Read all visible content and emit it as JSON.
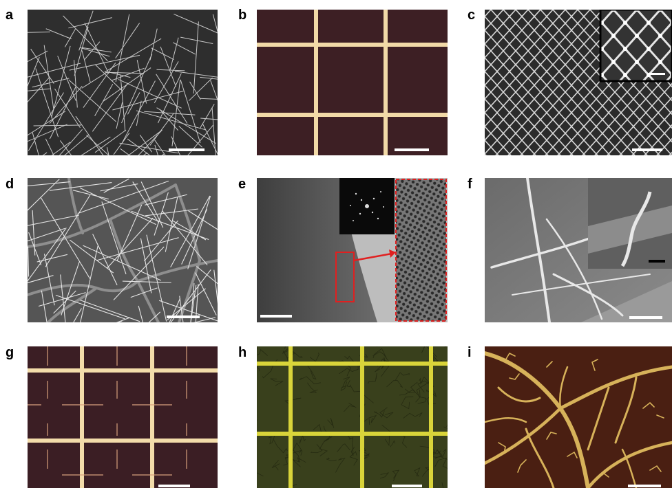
{
  "figure": {
    "panels": [
      {
        "id": "a",
        "label": "a",
        "imaging": "SEM",
        "subject": "random nanowire network",
        "scale_bar_color": "#ffffff"
      },
      {
        "id": "b",
        "label": "b",
        "imaging": "optical",
        "subject": "square metal grid",
        "scale_bar_color": "#ffffff"
      },
      {
        "id": "c",
        "label": "c",
        "imaging": "SEM",
        "subject": "diamond mesh with magnified inset",
        "scale_bar_color": "#ffffff"
      },
      {
        "id": "d",
        "label": "d",
        "imaging": "SEM",
        "subject": "nanowires with cracked network",
        "scale_bar_color": "#ffffff"
      },
      {
        "id": "e",
        "label": "e",
        "imaging": "TEM",
        "subject": "nanowire edge with diffraction pattern and lattice zoom",
        "scale_bar_color": "#ffffff",
        "highlight_color": "#e02020"
      },
      {
        "id": "f",
        "label": "f",
        "imaging": "SEM tilted",
        "subject": "nanowires on substrate with inset",
        "scale_bar_color": "#ffffff",
        "inset_scale_bar_color": "#000000"
      },
      {
        "id": "g",
        "label": "g",
        "imaging": "optical",
        "subject": "grid with cross marks",
        "scale_bar_color": "#ffffff"
      },
      {
        "id": "h",
        "label": "h",
        "imaging": "optical",
        "subject": "yellow grid on green substrate",
        "scale_bar_color": "#ffffff"
      },
      {
        "id": "i",
        "label": "i",
        "imaging": "optical",
        "subject": "leaf-venation network",
        "scale_bar_color": "#ffffff"
      }
    ]
  }
}
